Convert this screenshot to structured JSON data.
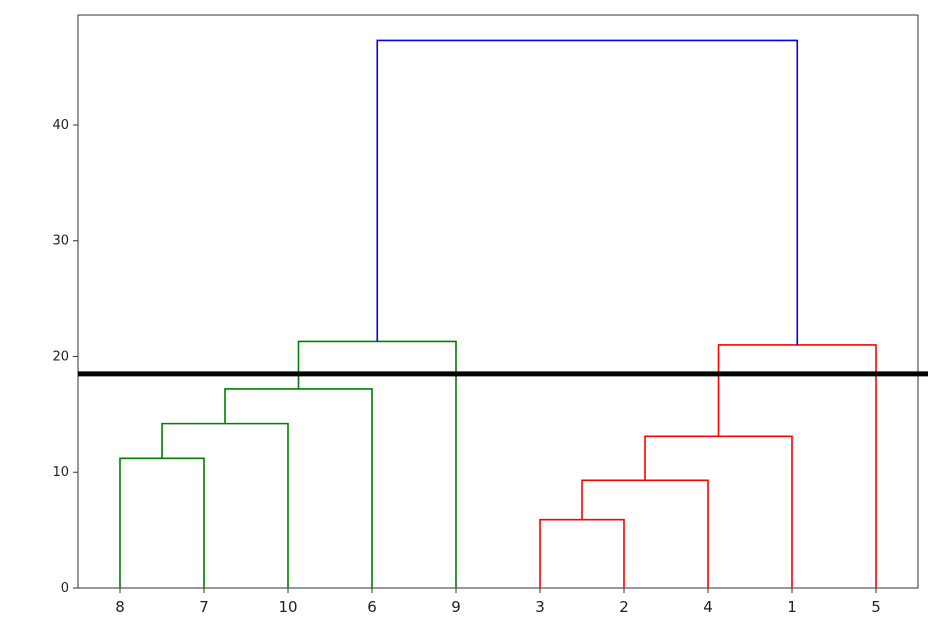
{
  "chart_data": {
    "type": "dendrogram",
    "leaves": [
      "8",
      "7",
      "10",
      "6",
      "9",
      "3",
      "2",
      "4",
      "1",
      "5"
    ],
    "ylim": [
      0,
      49.5
    ],
    "yticks": [
      0,
      10,
      20,
      30,
      40
    ],
    "ytick_labels": [
      "0",
      "10",
      "20",
      "30",
      "40"
    ],
    "xtick_labels": [
      "8",
      "7",
      "10",
      "6",
      "9",
      "3",
      "2",
      "4",
      "1",
      "5"
    ],
    "merges": [
      {
        "left": "8",
        "right": "7",
        "height": 11.2,
        "color": "#008000"
      },
      {
        "left": "8+7",
        "right": "10",
        "height": 14.2,
        "color": "#008000"
      },
      {
        "left": "8+7+10",
        "right": "6",
        "height": 17.2,
        "color": "#008000"
      },
      {
        "left": "8+7+10+6",
        "right": "9",
        "height": 21.3,
        "color": "#008000"
      },
      {
        "left": "3",
        "right": "2",
        "height": 5.9,
        "color": "#ff0000"
      },
      {
        "left": "3+2",
        "right": "4",
        "height": 9.3,
        "color": "#ff0000"
      },
      {
        "left": "3+2+4",
        "right": "1",
        "height": 13.1,
        "color": "#ff0000"
      },
      {
        "left": "3+2+4+1",
        "right": "5",
        "height": 21.0,
        "color": "#ff0000"
      },
      {
        "left": "8+7+10+6+9",
        "right": "3+2+4+1+5",
        "height": 47.3,
        "color": "#0000ff"
      }
    ],
    "cut_line": {
      "y": 18.5,
      "color": "#000000"
    },
    "title": "",
    "xlabel": "",
    "ylabel": "",
    "grid": false,
    "legend": false
  }
}
